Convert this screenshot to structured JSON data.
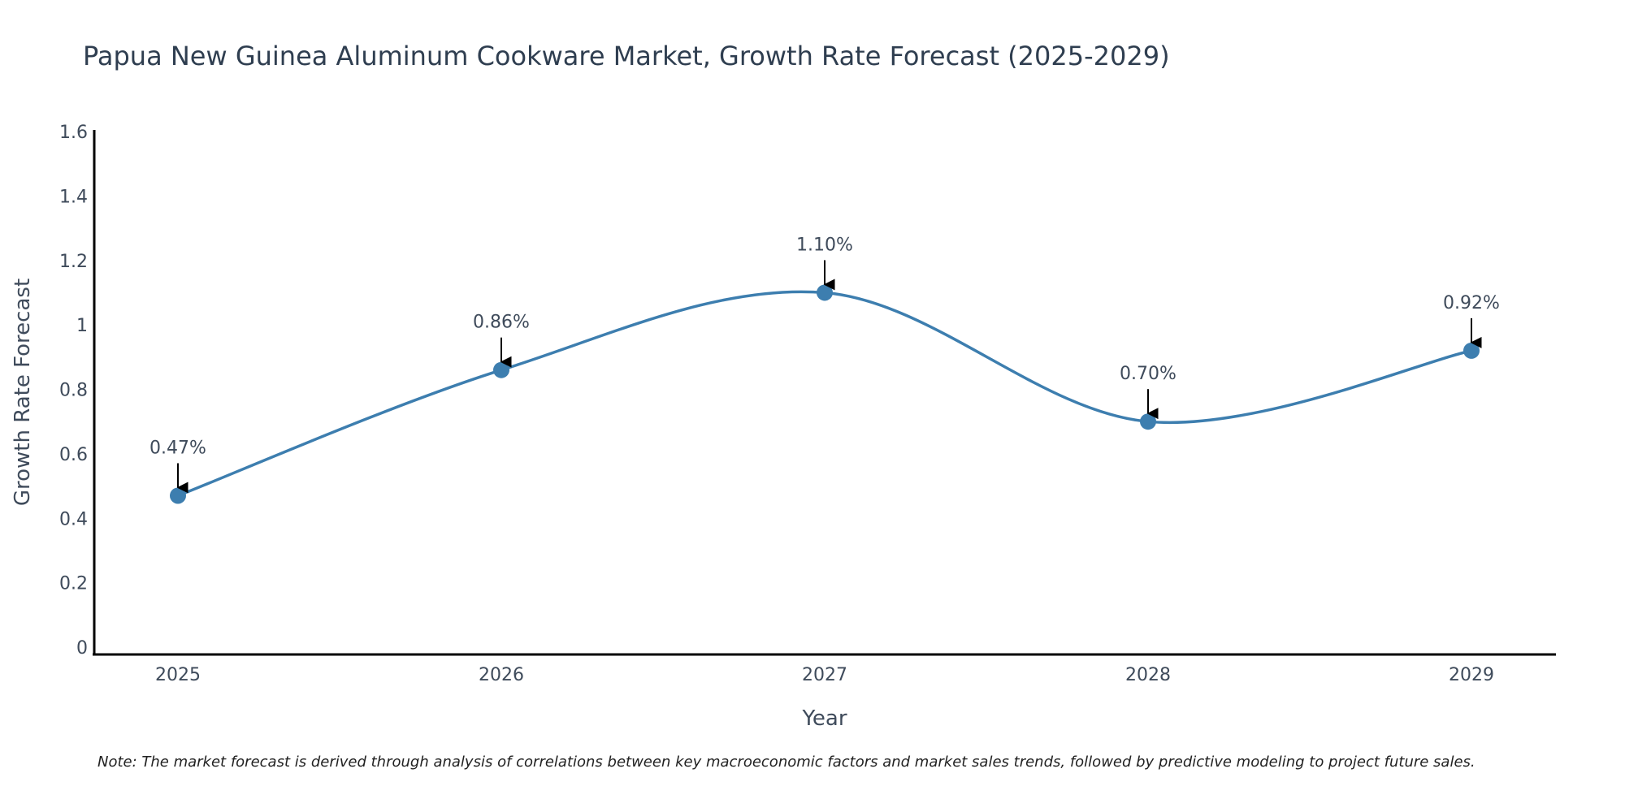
{
  "chart_data": {
    "type": "line",
    "title": "Papua New Guinea Aluminum Cookware Market, Growth Rate Forecast (2025-2029)",
    "xlabel": "Year",
    "ylabel": "Growth Rate Forecast",
    "categories": [
      "2025",
      "2026",
      "2027",
      "2028",
      "2029"
    ],
    "values": [
      0.47,
      0.86,
      1.1,
      0.7,
      0.92
    ],
    "data_labels": [
      "0.47%",
      "0.86%",
      "1.10%",
      "0.70%",
      "0.92%"
    ],
    "ylim": [
      0,
      1.6
    ],
    "yticks": [
      "0",
      "0.2",
      "0.4",
      "0.6",
      "0.8",
      "1",
      "1.2",
      "1.4",
      "1.6"
    ],
    "ytick_values": [
      0,
      0.2,
      0.4,
      0.6,
      0.8,
      1.0,
      1.2,
      1.4,
      1.6
    ],
    "grid": false,
    "smoothing": "spline",
    "colors": {
      "line": "#3d7eaf",
      "marker": "#3d7eaf",
      "axis": "#000000",
      "arrow": "#000000"
    }
  },
  "note": "Note: The market forecast is derived through analysis of correlations between key macroeconomic factors and market sales trends, followed by predictive modeling to project future sales."
}
